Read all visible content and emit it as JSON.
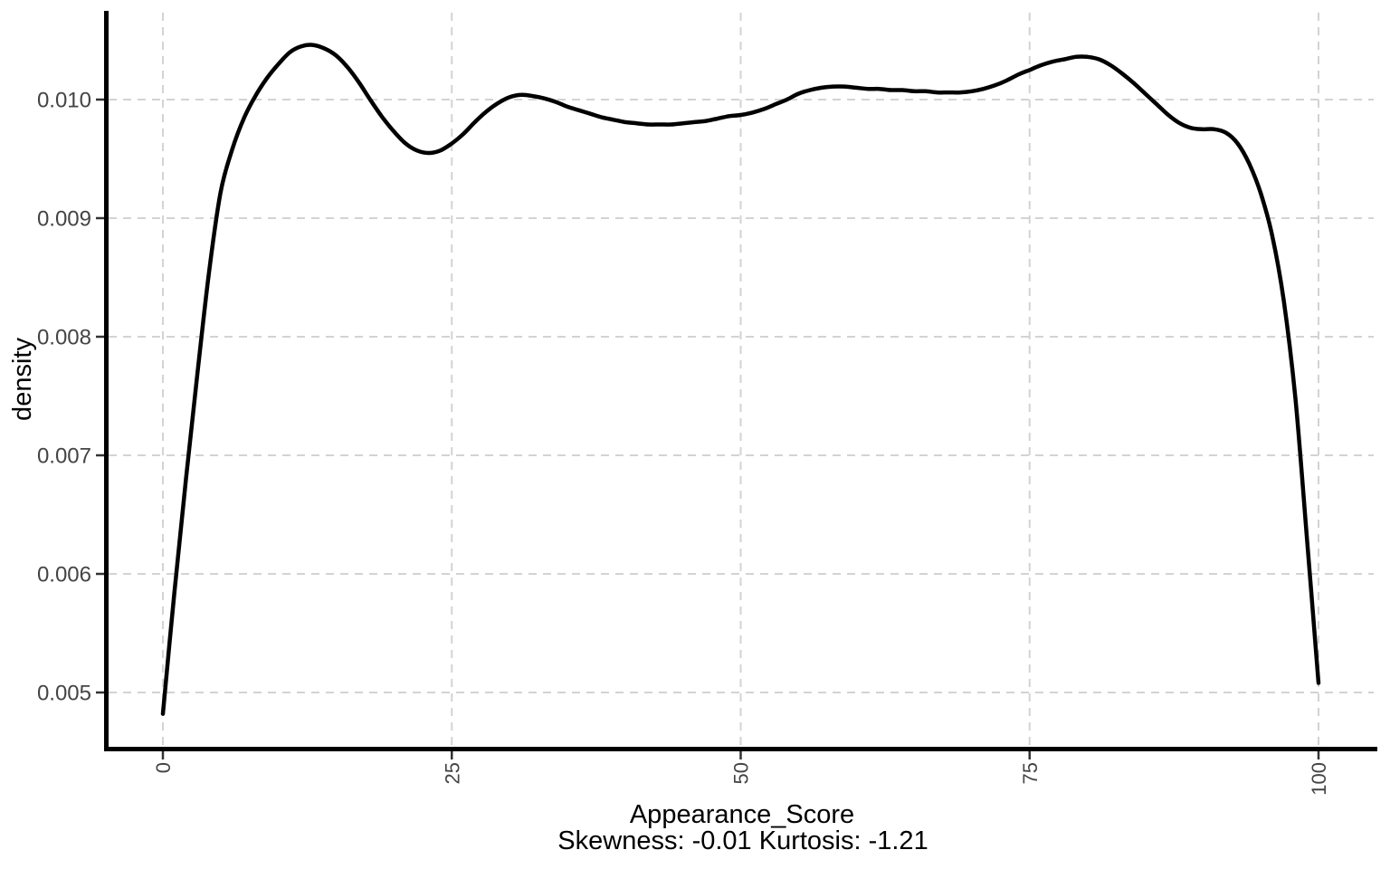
{
  "chart_data": {
    "type": "line",
    "subtype": "density-curve",
    "title": "",
    "xlabel": "Appearance_Score",
    "xlabel_line2": "Skewness: -0.01 Kurtosis: -1.21",
    "ylabel": "density",
    "stats": {
      "skewness": -0.01,
      "kurtosis": -1.21
    },
    "x_ticks": [
      0,
      25,
      50,
      75,
      100
    ],
    "x_tick_labels": [
      "0",
      "25",
      "50",
      "75",
      "100"
    ],
    "y_ticks": [
      0.005,
      0.006,
      0.007,
      0.008,
      0.009,
      0.01
    ],
    "y_tick_labels": [
      "0.005",
      "0.006",
      "0.007",
      "0.008",
      "0.009",
      "0.010"
    ],
    "xlim": [
      0,
      100
    ],
    "ylim": [
      0.0044,
      0.0108
    ],
    "grid": {
      "style": "dashed",
      "major_only": true
    },
    "legend_position": "none",
    "colors": {
      "curve": "#000000",
      "axis_line": "#000000",
      "tick_mark": "#333333",
      "tick_text": "#444444",
      "title_text": "#000000",
      "grid": "#d3d3d3",
      "background": "#ffffff"
    },
    "points": [
      [
        0,
        0.00482
      ],
      [
        1,
        0.00585
      ],
      [
        2,
        0.0068
      ],
      [
        3,
        0.0077
      ],
      [
        4,
        0.00855
      ],
      [
        5,
        0.00922
      ],
      [
        6,
        0.00958
      ],
      [
        7,
        0.00984
      ],
      [
        8,
        0.01003
      ],
      [
        9,
        0.01018
      ],
      [
        10,
        0.0103
      ],
      [
        11,
        0.0104
      ],
      [
        12,
        0.01045
      ],
      [
        13,
        0.01046
      ],
      [
        14,
        0.01043
      ],
      [
        15,
        0.01037
      ],
      [
        16,
        0.01027
      ],
      [
        17,
        0.01014
      ],
      [
        18,
        0.00999
      ],
      [
        19,
        0.00985
      ],
      [
        20,
        0.00973
      ],
      [
        21,
        0.00963
      ],
      [
        22,
        0.00957
      ],
      [
        23,
        0.00955
      ],
      [
        24,
        0.00957
      ],
      [
        25,
        0.00963
      ],
      [
        26,
        0.00971
      ],
      [
        27,
        0.00981
      ],
      [
        28,
        0.0099
      ],
      [
        29,
        0.00997
      ],
      [
        30,
        0.01002
      ],
      [
        31,
        0.01004
      ],
      [
        32,
        0.01003
      ],
      [
        33,
        0.01001
      ],
      [
        34,
        0.00998
      ],
      [
        35,
        0.00994
      ],
      [
        36,
        0.00991
      ],
      [
        37,
        0.00988
      ],
      [
        38,
        0.00985
      ],
      [
        39,
        0.00983
      ],
      [
        40,
        0.00981
      ],
      [
        41,
        0.0098
      ],
      [
        42,
        0.00979
      ],
      [
        43,
        0.00979
      ],
      [
        44,
        0.00979
      ],
      [
        45,
        0.0098
      ],
      [
        46,
        0.00981
      ],
      [
        47,
        0.00982
      ],
      [
        48,
        0.00984
      ],
      [
        49,
        0.00986
      ],
      [
        50,
        0.00987
      ],
      [
        51,
        0.00989
      ],
      [
        52,
        0.00992
      ],
      [
        53,
        0.00996
      ],
      [
        54,
        0.01
      ],
      [
        55,
        0.01005
      ],
      [
        56,
        0.01008
      ],
      [
        57,
        0.0101
      ],
      [
        58,
        0.01011
      ],
      [
        59,
        0.01011
      ],
      [
        60,
        0.0101
      ],
      [
        61,
        0.01009
      ],
      [
        62,
        0.01009
      ],
      [
        63,
        0.01008
      ],
      [
        64,
        0.01008
      ],
      [
        65,
        0.01007
      ],
      [
        66,
        0.01007
      ],
      [
        67,
        0.01006
      ],
      [
        68,
        0.01006
      ],
      [
        69,
        0.01006
      ],
      [
        70,
        0.01007
      ],
      [
        71,
        0.01009
      ],
      [
        72,
        0.01012
      ],
      [
        73,
        0.01016
      ],
      [
        74,
        0.01021
      ],
      [
        75,
        0.01025
      ],
      [
        76,
        0.01029
      ],
      [
        77,
        0.01032
      ],
      [
        78,
        0.01034
      ],
      [
        79,
        0.01036
      ],
      [
        80,
        0.01036
      ],
      [
        81,
        0.01034
      ],
      [
        82,
        0.01029
      ],
      [
        83,
        0.01022
      ],
      [
        84,
        0.01014
      ],
      [
        85,
        0.01005
      ],
      [
        86,
        0.00996
      ],
      [
        87,
        0.00987
      ],
      [
        88,
        0.0098
      ],
      [
        89,
        0.00976
      ],
      [
        90,
        0.00975
      ],
      [
        91,
        0.00975
      ],
      [
        92,
        0.00972
      ],
      [
        93,
        0.00963
      ],
      [
        94,
        0.00946
      ],
      [
        95,
        0.00921
      ],
      [
        96,
        0.00885
      ],
      [
        97,
        0.0083
      ],
      [
        98,
        0.00748
      ],
      [
        99,
        0.0063
      ],
      [
        100,
        0.00508
      ]
    ]
  }
}
